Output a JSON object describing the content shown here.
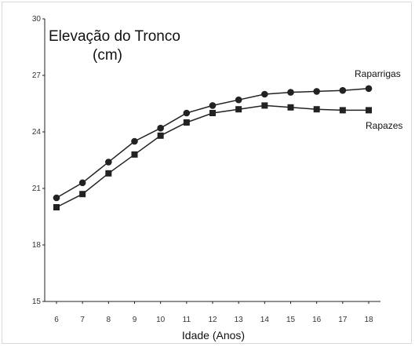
{
  "chart_data": {
    "type": "line",
    "title_line1": "Elevação do Tronco",
    "title_line2": "(cm)",
    "xlabel": "Idade (Anos)",
    "ylabel": "",
    "x": [
      6,
      7,
      8,
      9,
      10,
      11,
      12,
      13,
      14,
      15,
      16,
      17,
      18
    ],
    "ylim": [
      15,
      30
    ],
    "yticks": [
      15,
      18,
      21,
      24,
      27,
      30
    ],
    "grid": false,
    "legend": "direct labels at right end of lines",
    "series": [
      {
        "name": "Raparrigas",
        "marker": "circle",
        "values": [
          20.5,
          21.3,
          22.4,
          23.5,
          24.2,
          25.0,
          25.4,
          25.7,
          26.0,
          26.1,
          26.15,
          26.2,
          26.3
        ]
      },
      {
        "name": "Rapazes",
        "marker": "square",
        "values": [
          20.0,
          20.7,
          21.8,
          22.8,
          23.8,
          24.5,
          25.0,
          25.2,
          25.4,
          25.3,
          25.2,
          25.15,
          25.15
        ]
      }
    ],
    "colors": {
      "line": "#222222",
      "axis": "#222222"
    }
  }
}
